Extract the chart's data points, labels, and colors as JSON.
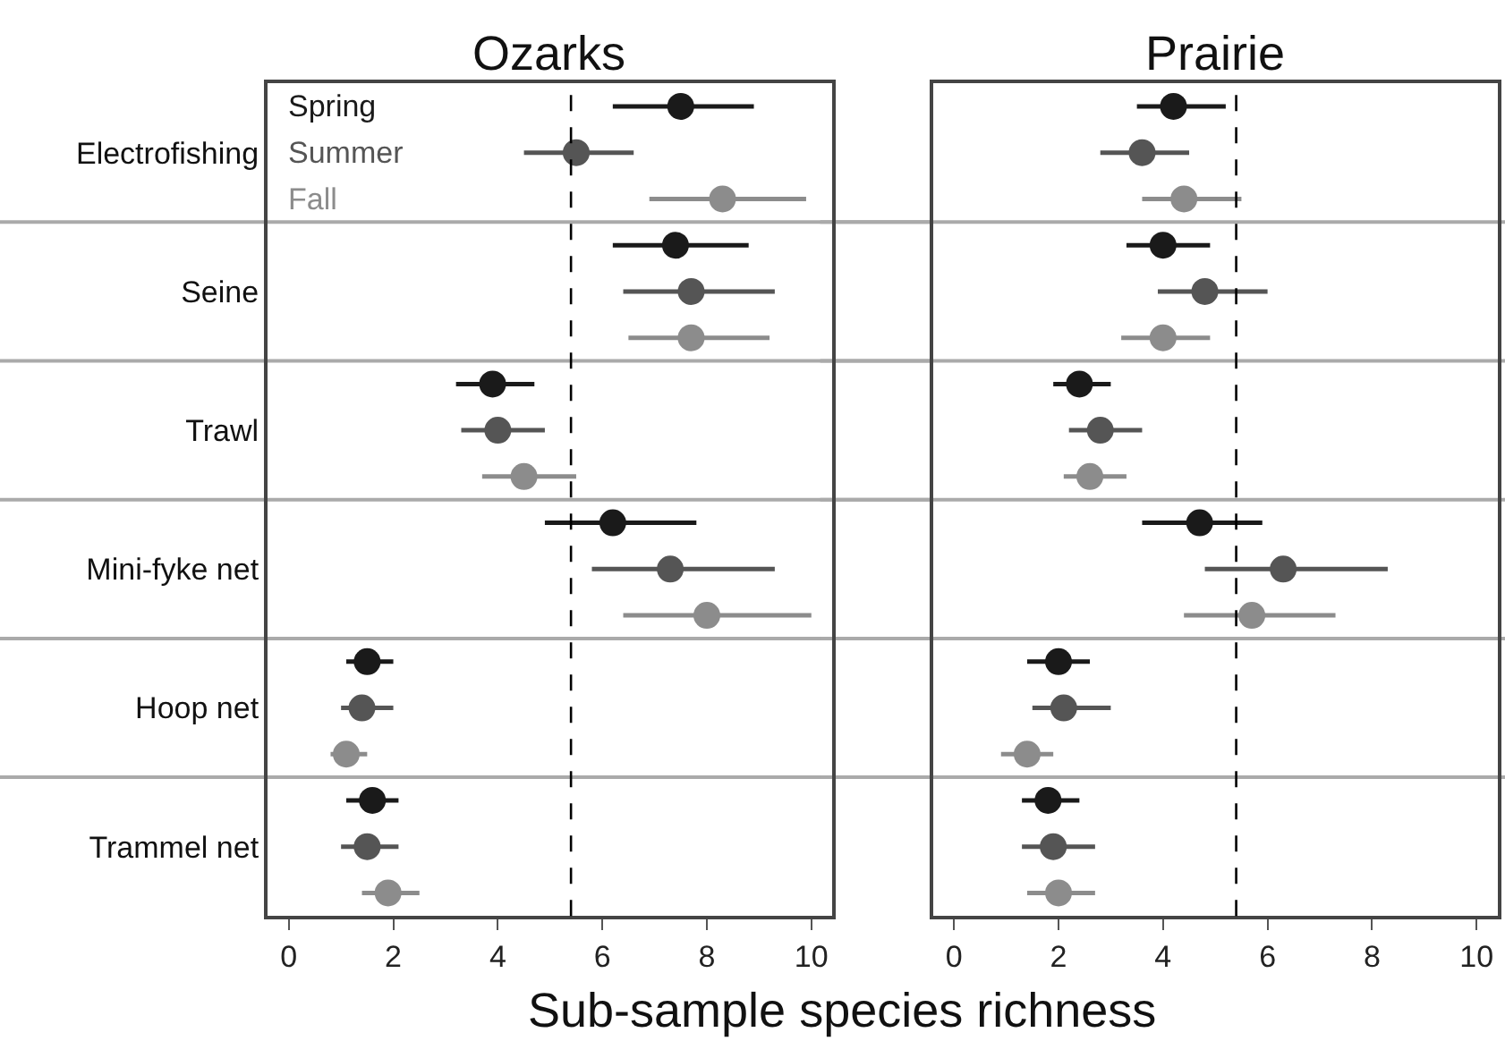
{
  "chart_data": [
    {
      "type": "scatter",
      "orientation": "horizontal",
      "title": "Ozarks",
      "xlabel": "Sub-sample species richness",
      "categories": [
        "Electrofishing",
        "Seine",
        "Trawl",
        "Mini-fyke net",
        "Hoop net",
        "Trammel net"
      ],
      "series": [
        {
          "name": "Spring",
          "color": "#1a1a1a",
          "values": [
            7.5,
            7.4,
            3.9,
            6.2,
            1.5,
            1.6
          ],
          "errors": [
            [
              6.2,
              8.9
            ],
            [
              6.2,
              8.8
            ],
            [
              3.2,
              4.7
            ],
            [
              4.9,
              7.8
            ],
            [
              1.1,
              2.0
            ],
            [
              1.1,
              2.1
            ]
          ]
        },
        {
          "name": "Summer",
          "color": "#555555",
          "values": [
            5.5,
            7.7,
            4.0,
            7.3,
            1.4,
            1.5
          ],
          "errors": [
            [
              4.5,
              6.6
            ],
            [
              6.4,
              9.3
            ],
            [
              3.3,
              4.9
            ],
            [
              5.8,
              9.3
            ],
            [
              1.0,
              2.0
            ],
            [
              1.0,
              2.1
            ]
          ]
        },
        {
          "name": "Fall",
          "color": "#8c8c8c",
          "values": [
            8.3,
            7.7,
            4.5,
            8.0,
            1.1,
            1.9
          ],
          "errors": [
            [
              6.9,
              9.9
            ],
            [
              6.5,
              9.2
            ],
            [
              3.7,
              5.5
            ],
            [
              6.4,
              10.0
            ],
            [
              0.8,
              1.5
            ],
            [
              1.4,
              2.5
            ]
          ]
        }
      ],
      "xlim": [
        -0.4,
        10.4
      ],
      "xticks": [
        0,
        2,
        4,
        6,
        8,
        10
      ],
      "ref_lines": [
        {
          "axis": "x",
          "value": 5.4,
          "color": "#000000",
          "line_style": "dashed"
        }
      ],
      "grid": "y",
      "legend": "top left",
      "marker": "circle"
    },
    {
      "type": "scatter",
      "orientation": "horizontal",
      "title": "Prairie",
      "categories": [
        "Electrofishing",
        "Seine",
        "Trawl",
        "Mini-fyke net",
        "Hoop net",
        "Trammel net"
      ],
      "series": [
        {
          "color": "#1a1a1a",
          "values": [
            4.2,
            4.0,
            2.4,
            4.7,
            2.0,
            1.8
          ],
          "errors": [
            [
              3.5,
              5.2
            ],
            [
              3.3,
              4.9
            ],
            [
              1.9,
              3.0
            ],
            [
              3.6,
              5.9
            ],
            [
              1.4,
              2.6
            ],
            [
              1.3,
              2.4
            ]
          ]
        },
        {
          "color": "#555555",
          "values": [
            3.6,
            4.8,
            2.8,
            6.3,
            2.1,
            1.9
          ],
          "errors": [
            [
              2.8,
              4.5
            ],
            [
              3.9,
              6.0
            ],
            [
              2.2,
              3.6
            ],
            [
              4.8,
              8.3
            ],
            [
              1.5,
              3.0
            ],
            [
              1.3,
              2.7
            ]
          ]
        },
        {
          "color": "#8c8c8c",
          "values": [
            4.4,
            4.0,
            2.6,
            5.7,
            1.4,
            2.0
          ],
          "errors": [
            [
              3.6,
              5.5
            ],
            [
              3.2,
              4.9
            ],
            [
              2.1,
              3.3
            ],
            [
              4.4,
              7.3
            ],
            [
              0.9,
              1.9
            ],
            [
              1.4,
              2.7
            ]
          ]
        }
      ],
      "xlim": [
        -0.4,
        10.4
      ],
      "xticks": [
        0,
        2,
        4,
        6,
        8,
        10
      ],
      "ref_lines": [
        {
          "axis": "x",
          "value": 5.4,
          "color": "#000000",
          "line_style": "dashed"
        }
      ],
      "grid": "y",
      "marker": "circle",
      "tick_labels": "x"
    }
  ]
}
